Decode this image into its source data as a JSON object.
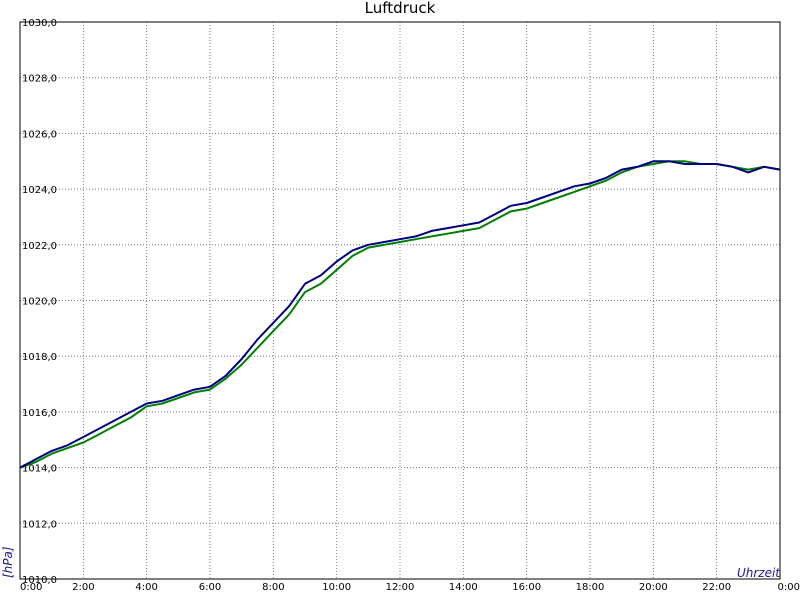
{
  "chart_data": {
    "type": "line",
    "title": "Luftdruck",
    "xlabel": "Uhrzeit",
    "ylabel": "[hPa]",
    "xlim": [
      0,
      24
    ],
    "ylim": [
      1010,
      1030
    ],
    "y_ticks": [
      {
        "value": 1010,
        "label": "1010,0"
      },
      {
        "value": 1012,
        "label": "1012,0"
      },
      {
        "value": 1014,
        "label": "1014,0"
      },
      {
        "value": 1016,
        "label": "1016,0"
      },
      {
        "value": 1018,
        "label": "1018,0"
      },
      {
        "value": 1020,
        "label": "1020,0"
      },
      {
        "value": 1022,
        "label": "1022,0"
      },
      {
        "value": 1024,
        "label": "1024,0"
      },
      {
        "value": 1026,
        "label": "1026,0"
      },
      {
        "value": 1028,
        "label": "1028,0"
      },
      {
        "value": 1030,
        "label": "1030,0"
      }
    ],
    "x_ticks": [
      {
        "value": 0,
        "label": "0:00"
      },
      {
        "value": 2,
        "label": "2:00"
      },
      {
        "value": 4,
        "label": "4:00"
      },
      {
        "value": 6,
        "label": "6:00"
      },
      {
        "value": 8,
        "label": "8:00"
      },
      {
        "value": 10,
        "label": "10:00"
      },
      {
        "value": 12,
        "label": "12:00"
      },
      {
        "value": 14,
        "label": "14:00"
      },
      {
        "value": 16,
        "label": "16:00"
      },
      {
        "value": 18,
        "label": "18:00"
      },
      {
        "value": 20,
        "label": "20:00"
      },
      {
        "value": 22,
        "label": "22:00"
      },
      {
        "value": 24,
        "label": "0:00"
      }
    ],
    "grid": true,
    "series": [
      {
        "color": "#000080",
        "x": [
          0,
          0.5,
          1,
          1.5,
          2,
          2.5,
          3,
          3.5,
          4,
          4.5,
          5,
          5.5,
          6,
          6.5,
          7,
          7.5,
          8,
          8.5,
          9,
          9.5,
          10,
          10.5,
          11,
          11.5,
          12,
          12.5,
          13,
          13.5,
          14,
          14.5,
          15,
          15.5,
          16,
          16.5,
          17,
          17.5,
          18,
          18.5,
          19,
          19.5,
          20,
          20.5,
          21,
          21.5,
          22,
          22.5,
          23,
          23.5,
          24
        ],
        "y": [
          1014.0,
          1014.3,
          1014.6,
          1014.8,
          1015.1,
          1015.4,
          1015.7,
          1016.0,
          1016.3,
          1016.4,
          1016.6,
          1016.8,
          1016.9,
          1017.3,
          1017.9,
          1018.6,
          1019.2,
          1019.8,
          1020.6,
          1020.9,
          1021.4,
          1021.8,
          1022.0,
          1022.1,
          1022.2,
          1022.3,
          1022.5,
          1022.6,
          1022.7,
          1022.8,
          1023.1,
          1023.4,
          1023.5,
          1023.7,
          1023.9,
          1024.1,
          1024.2,
          1024.4,
          1024.7,
          1024.8,
          1025.0,
          1025.0,
          1024.9,
          1024.9,
          1024.9,
          1024.8,
          1024.6,
          1024.8,
          1024.7
        ]
      },
      {
        "color": "#008000",
        "x": [
          0,
          0.5,
          1,
          1.5,
          2,
          2.5,
          3,
          3.5,
          4,
          4.5,
          5,
          5.5,
          6,
          6.5,
          7,
          7.5,
          8,
          8.5,
          9,
          9.5,
          10,
          10.5,
          11,
          11.5,
          12,
          12.5,
          13,
          13.5,
          14,
          14.5,
          15,
          15.5,
          16,
          16.5,
          17,
          17.5,
          18,
          18.5,
          19,
          19.5,
          20,
          20.5,
          21,
          21.5,
          22,
          22.5,
          23,
          23.5,
          24
        ],
        "y": [
          1014.0,
          1014.2,
          1014.5,
          1014.7,
          1014.9,
          1015.2,
          1015.5,
          1015.8,
          1016.2,
          1016.3,
          1016.5,
          1016.7,
          1016.8,
          1017.2,
          1017.7,
          1018.3,
          1018.9,
          1019.5,
          1020.3,
          1020.6,
          1021.1,
          1021.6,
          1021.9,
          1022.0,
          1022.1,
          1022.2,
          1022.3,
          1022.4,
          1022.5,
          1022.6,
          1022.9,
          1023.2,
          1023.3,
          1023.5,
          1023.7,
          1023.9,
          1024.1,
          1024.3,
          1024.6,
          1024.8,
          1024.9,
          1025.0,
          1025.0,
          1024.9,
          1024.9,
          1024.8,
          1024.7,
          1024.8,
          1024.7
        ]
      }
    ]
  }
}
